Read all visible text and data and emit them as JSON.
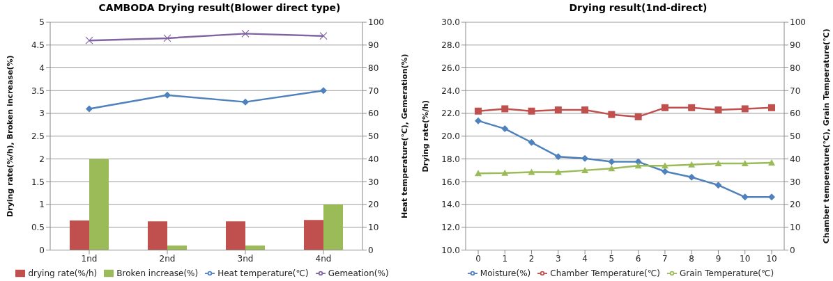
{
  "chart_data": [
    {
      "type": "bar",
      "title": "CAMBODA  Drying result(Blower direct type)",
      "ylabel": "Drying rate(%/h), Broken increase(%)",
      "y2label": "Heat temperature(℃),   Gemeration(%)",
      "categories": [
        "1nd",
        "2nd",
        "3nd",
        "4nd"
      ],
      "series": [
        {
          "name": "drying rate(%/h)",
          "color": "#c0504d",
          "values": [
            0.65,
            0.63,
            0.63,
            0.66
          ]
        },
        {
          "name": "Broken increase(%)",
          "color": "#9bbb59",
          "values": [
            2,
            0.1,
            0.1,
            1
          ]
        },
        {
          "name": "Heat temperature(℃)",
          "type": "line",
          "axis": "y2",
          "marker": "diamond",
          "color": "#4f81bd",
          "values": [
            62,
            68,
            65,
            70
          ]
        },
        {
          "name": "Gemeation(%)",
          "type": "line",
          "axis": "y2",
          "marker": "cross",
          "color": "#8064a2",
          "values": [
            92,
            93,
            95,
            94
          ]
        }
      ],
      "ylim": [
        0,
        5
      ],
      "yticks": [
        0,
        0.5,
        1,
        1.5,
        2,
        2.5,
        3,
        3.5,
        4,
        4.5,
        5
      ],
      "y2lim": [
        0,
        100
      ],
      "y2ticks": [
        0,
        10,
        20,
        30,
        40,
        50,
        60,
        70,
        80,
        90,
        100
      ],
      "grid": "y",
      "legend": "bottom"
    },
    {
      "type": "line",
      "title": "Drying result(1nd-direct)",
      "ylabel": "Drying rate(%/h)",
      "y2label": "Chamber temperature(℃),  Grain  Temperature(℃)",
      "categories": [
        "0",
        "1",
        "2",
        "3",
        "4",
        "5",
        "6",
        "7",
        "8",
        "9",
        "10",
        "10"
      ],
      "series": [
        {
          "name": "Moisture(%)",
          "marker": "diamond",
          "color": "#4f81bd",
          "values": [
            21.35,
            20.65,
            19.45,
            18.2,
            18.05,
            17.75,
            17.75,
            16.9,
            16.4,
            15.7,
            14.65,
            14.65
          ]
        },
        {
          "name": "Chamber Temperature(℃)",
          "axis": "y2",
          "marker": "square",
          "color": "#c0504d",
          "values": [
            61,
            62,
            61,
            61.5,
            61.5,
            59.5,
            58.5,
            62.5,
            62.5,
            61.5,
            62,
            62.5
          ]
        },
        {
          "name": "Grain Temperature(℃)",
          "axis": "y2",
          "marker": "triangle",
          "color": "#9bbb59",
          "values": [
            33.7,
            33.8,
            34.2,
            34.2,
            35,
            35.8,
            37,
            37,
            37.5,
            38,
            38,
            38.3
          ]
        }
      ],
      "ylim": [
        10,
        30
      ],
      "yticks": [
        {
          "value": 10,
          "label": "10.0"
        },
        {
          "value": 12,
          "label": "12.0"
        },
        {
          "value": 14,
          "label": "14.0"
        },
        {
          "value": 16,
          "label": "16.0"
        },
        {
          "value": 18,
          "label": "18.0"
        },
        {
          "value": 20,
          "label": "20.0"
        },
        {
          "value": 22,
          "label": "22.0"
        },
        {
          "value": 24,
          "label": "24.0"
        },
        {
          "value": 26,
          "label": "26.0"
        },
        {
          "value": 28,
          "label": "28.0"
        },
        {
          "value": 30,
          "label": "30.0"
        }
      ],
      "y2lim": [
        0,
        100
      ],
      "y2ticks": [
        0,
        10,
        20,
        30,
        40,
        50,
        60,
        70,
        80,
        90,
        100
      ],
      "grid": "y",
      "legend": "bottom"
    }
  ]
}
